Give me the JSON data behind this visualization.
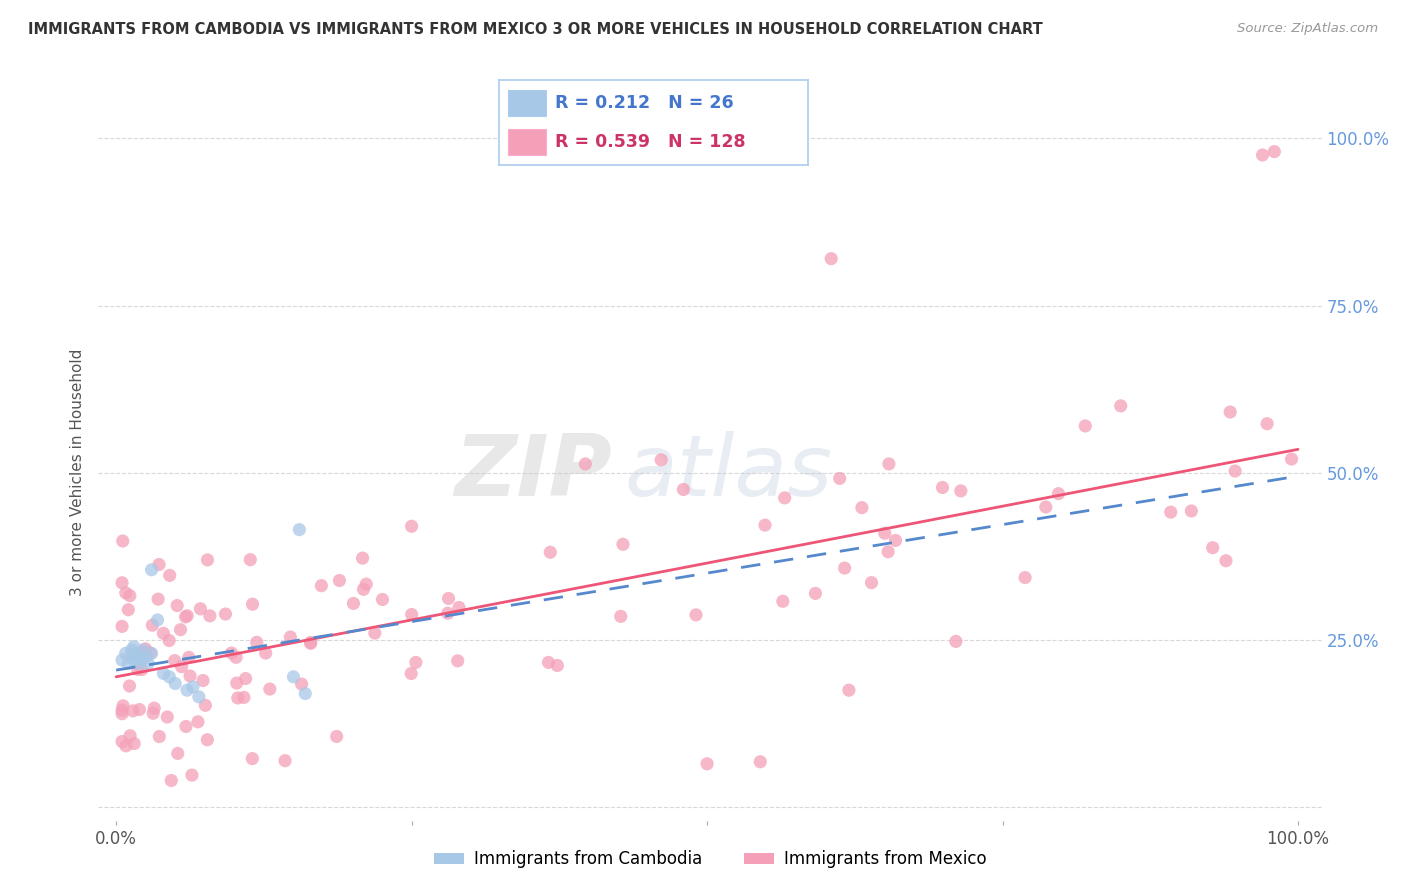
{
  "title": "IMMIGRANTS FROM CAMBODIA VS IMMIGRANTS FROM MEXICO 3 OR MORE VEHICLES IN HOUSEHOLD CORRELATION CHART",
  "source": "Source: ZipAtlas.com",
  "ylabel": "3 or more Vehicles in Household",
  "legend_R_cambodia": "0.212",
  "legend_N_cambodia": "26",
  "legend_R_mexico": "0.539",
  "legend_N_mexico": "128",
  "cambodia_color": "#a8c8e8",
  "mexico_color": "#f4a0b8",
  "cambodia_line_color": "#5588cc",
  "mexico_line_color": "#ee5577",
  "watermark_zip": "ZIP",
  "watermark_atlas": "atlas",
  "background_color": "#ffffff",
  "grid_color": "#d8d8d8",
  "right_tick_color": "#6699dd",
  "title_color": "#333333",
  "source_color": "#999999",
  "xlim": [
    0.0,
    1.0
  ],
  "ylim": [
    0.0,
    1.0
  ],
  "cam_line_y0": 0.205,
  "cam_line_y1": 0.495,
  "mex_line_y0": 0.195,
  "mex_line_y1": 0.535
}
